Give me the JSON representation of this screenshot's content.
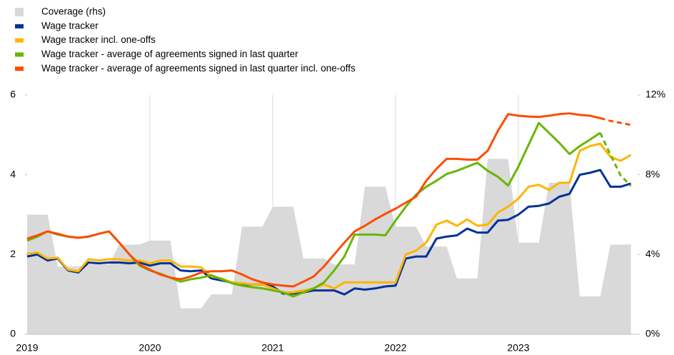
{
  "chart_data": {
    "type": "line",
    "categories": [
      "2019",
      null,
      null,
      null,
      null,
      null,
      null,
      null,
      null,
      null,
      null,
      null,
      "2020",
      null,
      null,
      null,
      null,
      null,
      null,
      null,
      null,
      null,
      null,
      null,
      "2021",
      null,
      null,
      null,
      null,
      null,
      null,
      null,
      null,
      null,
      null,
      null,
      "2022",
      null,
      null,
      null,
      null,
      null,
      null,
      null,
      null,
      null,
      null,
      null,
      "2023",
      null,
      null,
      null,
      null,
      null,
      null,
      null,
      null,
      null,
      null,
      null
    ],
    "series": [
      {
        "name": "Coverage (rhs)",
        "type": "area",
        "axis": "y2",
        "color": "#d9d9d9",
        "values": [
          6.0,
          6.0,
          6.0,
          3.4,
          3.4,
          3.4,
          3.5,
          3.5,
          3.5,
          4.5,
          4.5,
          4.5,
          4.7,
          4.7,
          4.7,
          1.3,
          1.3,
          1.3,
          2.0,
          2.0,
          2.0,
          5.4,
          5.4,
          5.4,
          6.4,
          6.4,
          6.4,
          3.8,
          3.8,
          3.8,
          3.5,
          3.5,
          3.5,
          7.4,
          7.4,
          7.4,
          5.4,
          5.4,
          5.4,
          4.4,
          4.4,
          4.4,
          2.8,
          2.8,
          2.8,
          8.8,
          8.8,
          8.8,
          4.6,
          4.6,
          4.6,
          7.6,
          7.6,
          7.6,
          1.9,
          1.9,
          1.9,
          4.5,
          4.5,
          4.5
        ]
      },
      {
        "name": "Wage tracker",
        "color": "#003299",
        "values": [
          1.95,
          2.0,
          1.85,
          1.9,
          1.6,
          1.55,
          1.8,
          1.78,
          1.8,
          1.8,
          1.78,
          1.8,
          1.72,
          1.78,
          1.78,
          1.6,
          1.58,
          1.6,
          1.4,
          1.35,
          1.3,
          1.25,
          1.25,
          1.25,
          1.2,
          1.02,
          1.02,
          1.05,
          1.1,
          1.1,
          1.1,
          1.0,
          1.15,
          1.12,
          1.15,
          1.2,
          1.22,
          1.9,
          1.95,
          1.95,
          2.4,
          2.45,
          2.48,
          2.65,
          2.55,
          2.55,
          2.85,
          2.87,
          3.0,
          3.2,
          3.22,
          3.28,
          3.45,
          3.52,
          4.0,
          4.05,
          4.12,
          3.7,
          3.7,
          3.78
        ]
      },
      {
        "name": "Wage tracker incl. one-offs",
        "color": "#ffb400",
        "values": [
          2.02,
          2.05,
          1.9,
          1.92,
          1.62,
          1.58,
          1.88,
          1.85,
          1.88,
          1.88,
          1.85,
          1.85,
          1.78,
          1.85,
          1.85,
          1.7,
          1.7,
          1.68,
          1.45,
          1.4,
          1.3,
          1.28,
          1.25,
          1.25,
          1.15,
          1.05,
          1.05,
          1.1,
          1.15,
          1.25,
          1.15,
          1.3,
          1.3,
          1.3,
          1.3,
          1.3,
          1.3,
          2.0,
          2.1,
          2.3,
          2.75,
          2.85,
          2.72,
          2.88,
          2.72,
          2.75,
          3.05,
          3.2,
          3.4,
          3.7,
          3.75,
          3.62,
          3.8,
          3.8,
          4.6,
          4.72,
          4.78,
          4.45,
          4.35,
          4.5
        ]
      },
      {
        "name": "Wage tracker - average of agreements signed in last quarter",
        "color": "#65b800",
        "dashed_from": 56,
        "values": [
          2.35,
          2.45,
          2.58,
          2.5,
          2.45,
          2.42,
          2.45,
          2.52,
          2.58,
          2.3,
          2.0,
          1.72,
          1.6,
          1.52,
          1.42,
          1.32,
          1.38,
          1.42,
          1.48,
          1.38,
          1.28,
          1.22,
          1.18,
          1.15,
          1.1,
          1.05,
          0.95,
          1.05,
          1.15,
          1.3,
          1.6,
          1.95,
          2.5,
          2.5,
          2.5,
          2.48,
          2.85,
          3.2,
          3.5,
          3.7,
          3.85,
          4.02,
          4.1,
          4.2,
          4.3,
          4.1,
          3.95,
          3.73,
          4.2,
          4.75,
          5.3,
          5.05,
          4.8,
          4.52,
          4.72,
          4.88,
          5.05,
          4.5,
          3.98,
          3.72
        ]
      },
      {
        "name": "Wage tracker - average of agreements signed in last quarter incl. one-offs",
        "color": "#ff4b00",
        "dashed_from": 56,
        "values": [
          2.4,
          2.48,
          2.58,
          2.52,
          2.45,
          2.42,
          2.45,
          2.52,
          2.58,
          2.3,
          2.0,
          1.75,
          1.62,
          1.5,
          1.42,
          1.38,
          1.45,
          1.55,
          1.58,
          1.58,
          1.6,
          1.5,
          1.38,
          1.3,
          1.25,
          1.22,
          1.2,
          1.32,
          1.45,
          1.7,
          2.0,
          2.3,
          2.58,
          2.72,
          2.88,
          3.02,
          3.15,
          3.3,
          3.45,
          3.85,
          4.15,
          4.4,
          4.4,
          4.38,
          4.38,
          4.6,
          5.1,
          5.52,
          5.48,
          5.46,
          5.45,
          5.48,
          5.52,
          5.54,
          5.5,
          5.48,
          5.42,
          5.35,
          5.3,
          5.25
        ]
      }
    ],
    "ylim": [
      0,
      6
    ],
    "yticks": [
      0,
      2,
      4,
      6
    ],
    "y2lim": [
      0,
      12
    ],
    "y2ticks": [
      {
        "value": 0,
        "label": "0%"
      },
      {
        "value": 4,
        "label": "4%"
      },
      {
        "value": 8,
        "label": "8%"
      },
      {
        "value": 12,
        "label": "12%"
      }
    ],
    "legend": "top-left",
    "grid": false
  }
}
